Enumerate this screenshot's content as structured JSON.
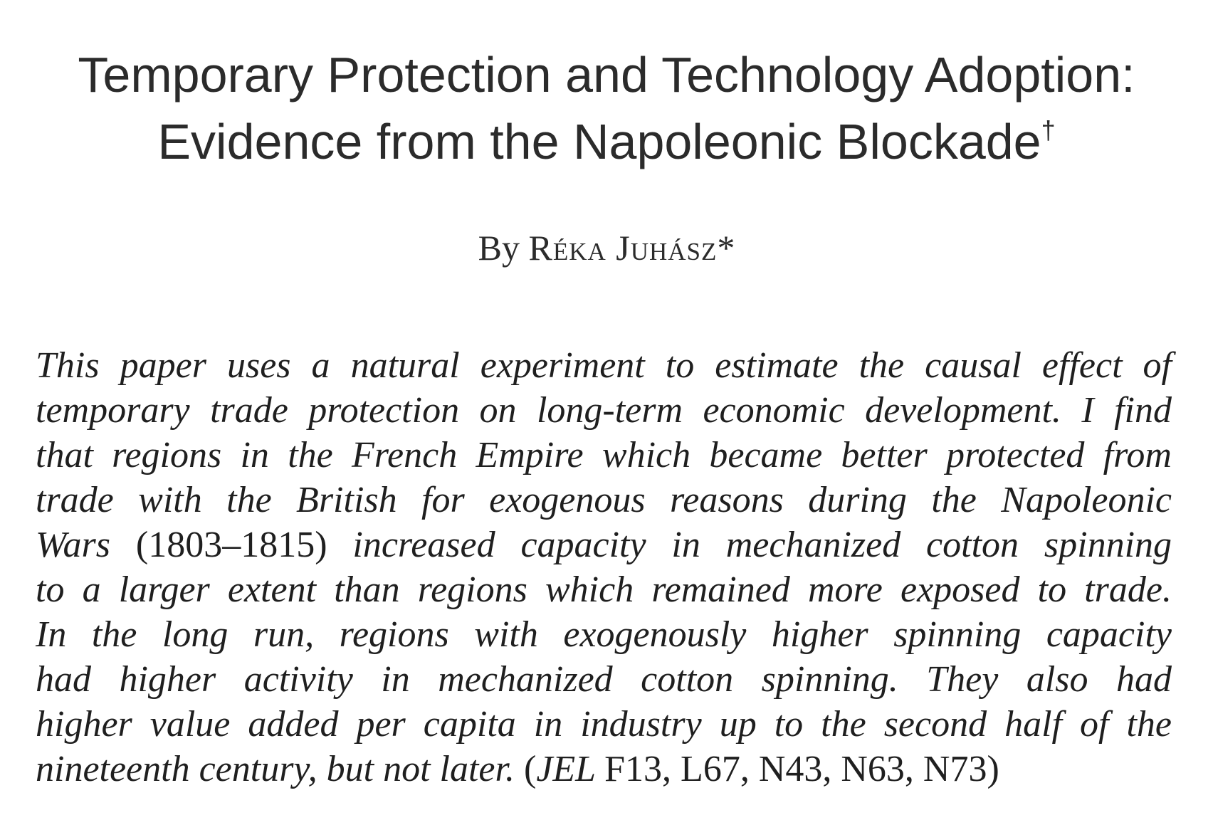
{
  "paper": {
    "title_line1": "Temporary Protection and Technology Adoption:",
    "title_line2": "Evidence from the Napoleonic Blockade",
    "title_footnote_mark": "†",
    "byline_prefix": "By",
    "author": "Réka Juhász",
    "author_mark": "*",
    "abstract_lines": [
      "This paper uses a natural experiment to estimate the causal effect of",
      "temporary trade protection on long-term economic development. I find",
      "that regions in the French Empire which became better protected from",
      "trade with the British for exogenous reasons during the Napoleonic",
      "Wars",
      "(1803–1815)",
      "increased capacity in mechanized cotton spinning",
      "to a larger extent than regions which remained more exposed to trade.",
      "In the long run, regions with exogenously higher spinning capacity",
      "had higher activity in mechanized cotton spinning. They also had",
      "higher value added per capita in industry up to the second half of the",
      "nineteenth century, but not later."
    ],
    "jel_open": "(",
    "jel_label": "JEL",
    "jel_codes": "F13, L67, N43, N63, N73",
    "jel_close": ")"
  }
}
